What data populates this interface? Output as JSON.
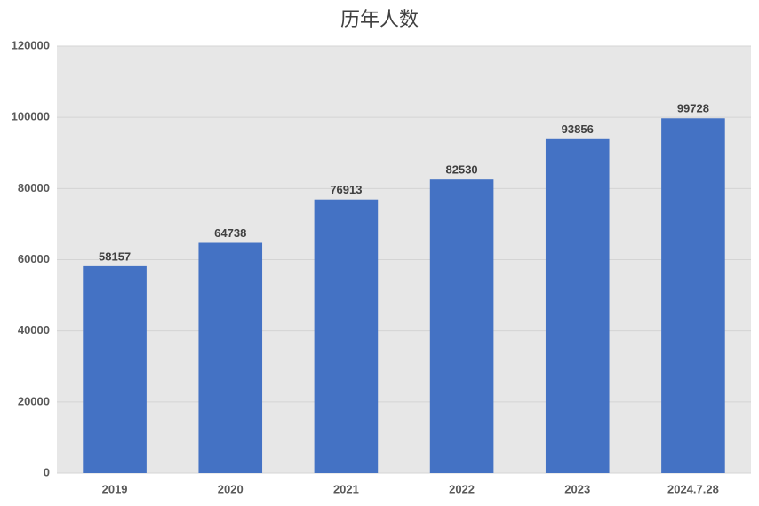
{
  "chart_data": {
    "type": "bar",
    "title": "历年人数",
    "categories": [
      "2019",
      "2020",
      "2021",
      "2022",
      "2023",
      "2024.7.28"
    ],
    "values": [
      58157,
      64738,
      76913,
      82530,
      93856,
      99728
    ],
    "color": "#4472c4",
    "ylim": [
      0,
      120000
    ],
    "yticks": [
      0,
      20000,
      40000,
      60000,
      80000,
      100000,
      120000
    ],
    "grid": true
  }
}
